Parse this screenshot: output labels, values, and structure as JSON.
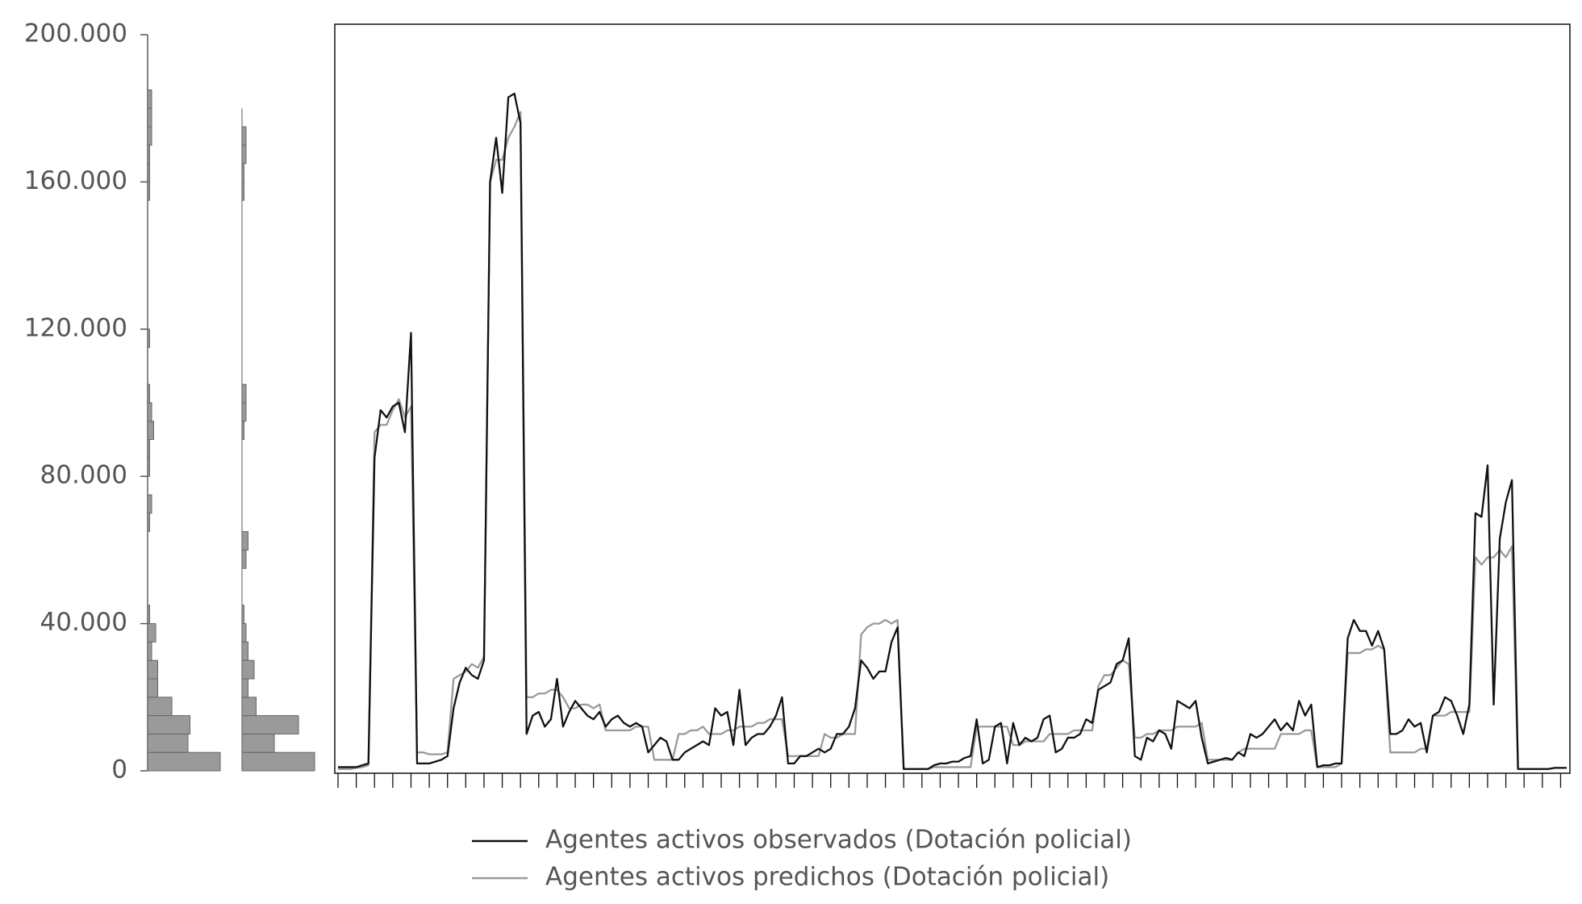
{
  "chart_data": [
    {
      "type": "line",
      "categories": [
        null,
        null,
        null,
        null,
        null,
        null,
        null,
        null,
        null,
        null,
        null,
        null,
        null,
        null,
        null,
        null,
        null,
        null,
        null,
        null,
        null,
        null,
        null,
        null,
        null,
        null,
        null,
        null,
        null,
        null,
        null,
        null,
        null,
        null,
        null,
        null,
        null,
        null,
        null,
        null,
        null,
        null,
        null,
        null,
        null,
        null,
        null,
        null,
        null,
        null,
        null,
        null,
        null,
        null,
        null,
        null,
        null,
        null,
        null,
        null,
        null,
        null,
        null,
        null,
        null,
        null,
        null,
        null,
        null,
        null,
        null,
        null,
        null,
        null,
        null,
        null,
        null,
        null,
        null,
        null,
        null,
        null,
        null,
        null,
        null,
        null,
        null,
        null,
        null,
        null,
        null,
        null,
        null,
        null,
        null,
        null,
        null,
        null,
        null,
        null,
        null,
        null,
        null,
        null,
        null,
        null,
        null,
        null,
        null,
        null,
        null,
        null,
        null,
        null,
        null,
        null,
        null,
        null,
        null,
        null,
        null,
        null,
        null,
        null,
        null,
        null,
        null,
        null,
        null,
        null,
        null,
        null,
        null,
        null,
        null,
        null,
        null,
        null,
        null,
        null,
        null,
        null,
        null,
        null,
        null,
        null,
        null,
        null,
        null,
        null,
        null,
        null,
        null,
        null,
        null,
        null,
        null,
        null,
        null,
        null,
        null,
        null,
        null,
        null,
        null,
        null,
        null,
        null,
        null,
        null,
        null,
        null,
        null,
        null,
        null,
        null,
        null,
        null,
        null,
        null,
        null,
        null,
        null,
        null,
        null,
        null,
        null,
        null,
        null,
        null,
        null,
        null,
        null,
        null,
        null,
        null,
        null,
        null,
        null,
        null,
        null,
        null,
        null
      ],
      "series": [
        {
          "name": "Agentes activos observados (Dotación policial)",
          "color": "#111111",
          "values": [
            1000,
            1000,
            1000,
            1000,
            1500,
            2000,
            85000,
            98000,
            96000,
            99000,
            100000,
            92000,
            119000,
            2000,
            2000,
            2000,
            2500,
            3000,
            4000,
            17000,
            24000,
            28000,
            26000,
            25000,
            30000,
            160000,
            172000,
            157000,
            183000,
            184000,
            176000,
            10000,
            15000,
            16000,
            12000,
            14000,
            25000,
            12000,
            16000,
            19000,
            17000,
            15000,
            14000,
            16000,
            12000,
            14000,
            15000,
            13000,
            12000,
            13000,
            12000,
            5000,
            7000,
            9000,
            8000,
            3000,
            3000,
            5000,
            6000,
            7000,
            8000,
            7000,
            17000,
            15000,
            16000,
            7000,
            22000,
            7000,
            9000,
            10000,
            10000,
            12000,
            15000,
            20000,
            2000,
            2000,
            4000,
            4000,
            5000,
            6000,
            5000,
            6000,
            10000,
            10000,
            12000,
            17000,
            30000,
            28000,
            25000,
            27000,
            27000,
            35000,
            39000,
            500,
            500,
            500,
            500,
            500,
            1500,
            2000,
            2000,
            2500,
            2500,
            3500,
            4000,
            14000,
            2000,
            3000,
            12000,
            13000,
            2000,
            13000,
            7000,
            9000,
            8000,
            9000,
            14000,
            15000,
            5000,
            6000,
            9000,
            9000,
            10000,
            14000,
            13000,
            22000,
            23000,
            24000,
            29000,
            30000,
            36000,
            4000,
            3000,
            9000,
            8000,
            11000,
            10000,
            6000,
            19000,
            18000,
            17000,
            19000,
            9000,
            2000,
            2500,
            3000,
            3500,
            3000,
            5000,
            4000,
            10000,
            9000,
            10000,
            12000,
            14000,
            11000,
            13000,
            11000,
            19000,
            15000,
            18000,
            1000,
            1500,
            1500,
            2000,
            2000,
            36000,
            41000,
            38000,
            38000,
            34000,
            38000,
            33000,
            10000,
            10000,
            11000,
            14000,
            12000,
            13000,
            5000,
            15000,
            16000,
            20000,
            19000,
            15000,
            10000,
            18000,
            70000,
            69000,
            83000,
            18000,
            63000,
            73000,
            79000,
            500,
            500,
            500,
            500,
            500,
            500,
            800,
            800,
            800
          ]
        },
        {
          "name": "Agentes activos predichos (Dotación policial)",
          "color": "#9a9a9a",
          "values": [
            500,
            500,
            500,
            800,
            1000,
            1500,
            92000,
            94000,
            94000,
            98000,
            101000,
            96000,
            99000,
            5000,
            5000,
            4500,
            4500,
            4500,
            5000,
            25000,
            26000,
            27000,
            29000,
            28000,
            31000,
            160000,
            166000,
            166000,
            172000,
            175000,
            179000,
            20000,
            20000,
            21000,
            21000,
            22000,
            22000,
            20000,
            17000,
            17000,
            18000,
            18000,
            17000,
            18000,
            11000,
            11000,
            11000,
            11000,
            11000,
            12000,
            12000,
            12000,
            3000,
            3000,
            3000,
            3000,
            10000,
            10000,
            11000,
            11000,
            12000,
            10000,
            10000,
            10000,
            11000,
            11000,
            12000,
            12000,
            12000,
            13000,
            13000,
            14000,
            14000,
            14000,
            4000,
            4000,
            4000,
            4000,
            4000,
            4000,
            10000,
            9000,
            9000,
            10000,
            10000,
            10000,
            37000,
            39000,
            40000,
            40000,
            41000,
            40000,
            41000,
            500,
            500,
            500,
            500,
            500,
            1000,
            1000,
            1000,
            1000,
            1000,
            1000,
            1000,
            12000,
            12000,
            12000,
            12000,
            12000,
            12000,
            7000,
            7000,
            8000,
            8000,
            8000,
            8000,
            10000,
            10000,
            10000,
            10000,
            11000,
            11000,
            11000,
            11000,
            23000,
            26000,
            26000,
            28000,
            30000,
            29000,
            9000,
            9000,
            10000,
            10000,
            11000,
            11000,
            11000,
            12000,
            12000,
            12000,
            12000,
            13000,
            3000,
            3000,
            3000,
            3000,
            3000,
            5000,
            6000,
            6000,
            6000,
            6000,
            6000,
            6000,
            10000,
            10000,
            10000,
            10000,
            11000,
            11000,
            1000,
            1000,
            1000,
            1000,
            2000,
            32000,
            32000,
            32000,
            33000,
            33000,
            34000,
            33000,
            5000,
            5000,
            5000,
            5000,
            5000,
            6000,
            6000,
            15000,
            15000,
            15000,
            16000,
            16000,
            16000,
            16000,
            58000,
            56000,
            58000,
            58000,
            60000,
            58000,
            61000,
            500,
            500,
            500,
            500,
            500,
            500,
            800,
            800,
            800
          ]
        }
      ],
      "ylim": [
        0,
        200000
      ],
      "yticks": [
        0,
        {
          "value": 40000,
          "label": "40.000"
        },
        {
          "value": 80000,
          "label": "80.000"
        },
        {
          "value": 120000,
          "label": "120.000"
        },
        {
          "value": 160000,
          "label": "160.000"
        },
        {
          "value": 200000,
          "label": "200.000"
        }
      ],
      "legend": "bottom"
    },
    {
      "type": "histogram",
      "orientation": "horizontal",
      "color": "#9a9a9a",
      "bins": [
        0,
        5000,
        10000,
        15000,
        20000,
        25000,
        30000,
        35000,
        40000,
        45000,
        50000,
        55000,
        60000,
        65000,
        70000,
        75000,
        80000,
        85000,
        90000,
        95000,
        100000,
        105000,
        110000,
        115000,
        120000,
        125000,
        130000,
        135000,
        140000,
        145000,
        150000,
        155000,
        160000,
        165000,
        170000,
        175000,
        180000,
        185000
      ],
      "counts": [
        36,
        20,
        21,
        12,
        5,
        5,
        2,
        4,
        1,
        0,
        0,
        0,
        0,
        1,
        2,
        0,
        1,
        1,
        3,
        2,
        1,
        0,
        0,
        1,
        0,
        0,
        0,
        0,
        0,
        0,
        0,
        1,
        1,
        1,
        2,
        2,
        2
      ]
    },
    {
      "type": "histogram",
      "orientation": "horizontal",
      "color": "#9a9a9a",
      "bins": [
        0,
        5000,
        10000,
        15000,
        20000,
        25000,
        30000,
        35000,
        40000,
        45000,
        50000,
        55000,
        60000,
        65000,
        70000,
        75000,
        80000,
        85000,
        90000,
        95000,
        100000,
        105000,
        110000,
        115000,
        120000,
        125000,
        130000,
        135000,
        140000,
        145000,
        150000,
        155000,
        160000,
        165000,
        170000,
        175000,
        180000
      ],
      "counts": [
        36,
        16,
        28,
        7,
        3,
        6,
        3,
        2,
        1,
        0,
        0,
        2,
        3,
        0,
        0,
        0,
        0,
        0,
        1,
        2,
        2,
        0,
        0,
        0,
        0,
        0,
        0,
        0,
        0,
        0,
        0,
        1,
        1,
        2,
        2,
        0
      ]
    }
  ]
}
